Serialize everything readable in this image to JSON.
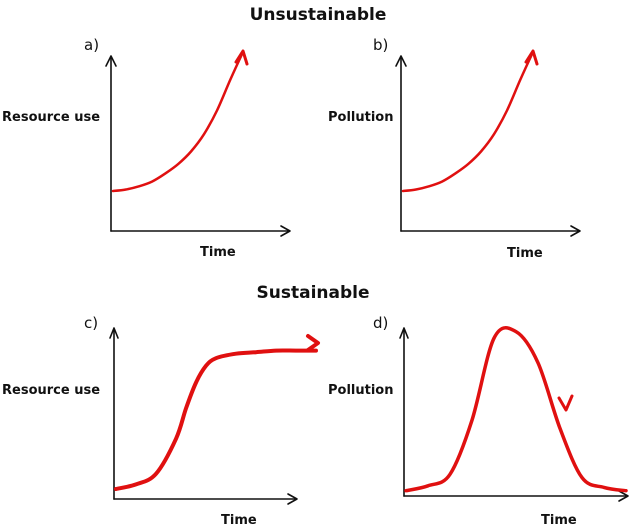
{
  "titles": {
    "top": "Unsustainable",
    "bottom": "Sustainable"
  },
  "colors": {
    "curve": "#e01010",
    "axes": "#111111"
  },
  "chart_data": [
    {
      "type": "line",
      "letter": "a)",
      "ylabel": "Resource use",
      "xlabel": "Time",
      "shape": "exponential growth",
      "x": [
        0,
        0.1,
        0.2,
        0.3,
        0.4,
        0.5,
        0.6,
        0.7,
        0.8,
        0.9,
        1.0
      ],
      "y": [
        0.12,
        0.13,
        0.15,
        0.18,
        0.23,
        0.29,
        0.37,
        0.48,
        0.63,
        0.82,
        1.0
      ]
    },
    {
      "type": "line",
      "letter": "b)",
      "ylabel": "Pollution",
      "xlabel": "Time",
      "shape": "exponential growth",
      "x": [
        0,
        0.1,
        0.2,
        0.3,
        0.4,
        0.5,
        0.6,
        0.7,
        0.8,
        0.9,
        1.0
      ],
      "y": [
        0.12,
        0.13,
        0.15,
        0.18,
        0.23,
        0.29,
        0.37,
        0.48,
        0.63,
        0.82,
        1.0
      ]
    },
    {
      "type": "line",
      "letter": "c)",
      "ylabel": "Resource use",
      "xlabel": "Time",
      "shape": "logistic (levels off)",
      "x": [
        0,
        0.1,
        0.2,
        0.3,
        0.35,
        0.4,
        0.45,
        0.5,
        0.6,
        0.7,
        0.8,
        0.9,
        1.0
      ],
      "y": [
        0.02,
        0.05,
        0.12,
        0.35,
        0.55,
        0.72,
        0.83,
        0.88,
        0.91,
        0.92,
        0.93,
        0.93,
        0.93
      ]
    },
    {
      "type": "line",
      "letter": "d)",
      "ylabel": "Pollution",
      "xlabel": "Time",
      "shape": "rise then fall",
      "x": [
        0,
        0.1,
        0.2,
        0.3,
        0.4,
        0.5,
        0.6,
        0.7,
        0.8,
        0.9,
        1.0
      ],
      "y": [
        0.02,
        0.05,
        0.12,
        0.45,
        0.95,
        0.99,
        0.8,
        0.4,
        0.1,
        0.04,
        0.02
      ]
    }
  ]
}
